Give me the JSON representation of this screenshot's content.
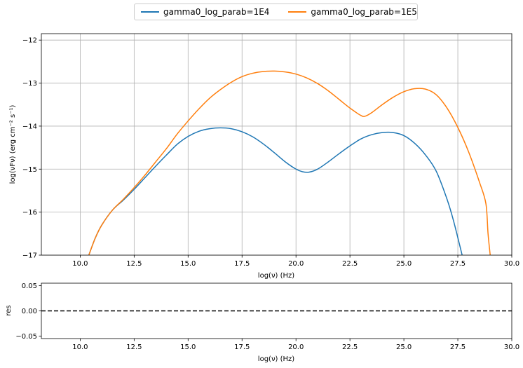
{
  "colors": {
    "series1": "#1f77b4",
    "series2": "#ff7f0e",
    "grid": "#b0b0b0"
  },
  "chart_data": [
    {
      "type": "line",
      "xlabel": "log(ν)  (Hz)",
      "ylabel": "log(νFν)  (erg cm⁻²  s⁻¹)",
      "xlim": [
        8.2,
        30.0
      ],
      "ylim": [
        -17.0,
        -11.85
      ],
      "xticks": [
        10.0,
        12.5,
        15.0,
        17.5,
        20.0,
        22.5,
        25.0,
        27.5,
        30.0
      ],
      "xtick_labels": [
        "10.0",
        "12.5",
        "15.0",
        "17.5",
        "20.0",
        "22.5",
        "25.0",
        "27.5",
        "30.0"
      ],
      "yticks": [
        -17,
        -16,
        -15,
        -14,
        -13,
        -12
      ],
      "ytick_labels": [
        "−17",
        "−16",
        "−15",
        "−14",
        "−13",
        "−12"
      ],
      "grid": true,
      "legend_position": "top-center",
      "series": [
        {
          "name": "gamma0_log_parab=1E4",
          "color": "#1f77b4",
          "x": [
            10.4,
            10.7,
            11.0,
            11.5,
            12.0,
            12.5,
            13.0,
            13.5,
            14.0,
            14.5,
            15.0,
            15.5,
            16.0,
            16.5,
            17.0,
            17.5,
            18.0,
            18.5,
            19.0,
            19.5,
            20.0,
            20.3,
            20.6,
            21.0,
            21.5,
            22.0,
            22.5,
            23.0,
            23.5,
            24.0,
            24.5,
            25.0,
            25.5,
            26.0,
            26.5,
            27.0,
            27.3,
            27.7
          ],
          "y": [
            -17.0,
            -16.6,
            -16.3,
            -15.95,
            -15.72,
            -15.47,
            -15.2,
            -14.93,
            -14.67,
            -14.42,
            -14.24,
            -14.12,
            -14.06,
            -14.04,
            -14.06,
            -14.13,
            -14.25,
            -14.42,
            -14.62,
            -14.83,
            -15.0,
            -15.06,
            -15.07,
            -15.0,
            -14.83,
            -14.64,
            -14.46,
            -14.3,
            -14.2,
            -14.15,
            -14.15,
            -14.22,
            -14.4,
            -14.67,
            -15.05,
            -15.7,
            -16.2,
            -17.0
          ]
        },
        {
          "name": "gamma0_log_parab=1E5",
          "color": "#ff7f0e",
          "x": [
            10.4,
            10.7,
            11.0,
            11.5,
            12.0,
            12.5,
            13.0,
            13.5,
            14.0,
            14.5,
            15.0,
            15.5,
            16.0,
            16.5,
            17.0,
            17.5,
            18.0,
            18.5,
            19.0,
            19.5,
            20.0,
            20.5,
            21.0,
            21.5,
            22.0,
            22.5,
            23.0,
            23.2,
            23.5,
            24.0,
            24.5,
            25.0,
            25.5,
            26.0,
            26.5,
            27.0,
            27.5,
            28.0,
            28.5,
            28.8,
            28.9,
            29.0
          ],
          "y": [
            -17.0,
            -16.6,
            -16.3,
            -15.95,
            -15.7,
            -15.43,
            -15.14,
            -14.83,
            -14.52,
            -14.18,
            -13.88,
            -13.6,
            -13.35,
            -13.15,
            -12.98,
            -12.85,
            -12.77,
            -12.73,
            -12.72,
            -12.74,
            -12.79,
            -12.88,
            -13.01,
            -13.18,
            -13.38,
            -13.58,
            -13.75,
            -13.77,
            -13.69,
            -13.5,
            -13.33,
            -13.2,
            -13.13,
            -13.14,
            -13.27,
            -13.58,
            -14.03,
            -14.6,
            -15.3,
            -15.8,
            -16.5,
            -17.0
          ]
        }
      ]
    },
    {
      "type": "line",
      "xlabel": "log(ν)  (Hz)",
      "ylabel": "res",
      "xlim": [
        8.2,
        30.0
      ],
      "ylim": [
        -0.055,
        0.055
      ],
      "xticks": [
        10.0,
        12.5,
        15.0,
        17.5,
        20.0,
        22.5,
        25.0,
        27.5,
        30.0
      ],
      "xtick_labels": [
        "10.0",
        "12.5",
        "15.0",
        "17.5",
        "20.0",
        "22.5",
        "25.0",
        "27.5",
        "30.0"
      ],
      "yticks": [
        -0.05,
        0.0,
        0.05
      ],
      "ytick_labels": [
        "−0.05",
        "0.00",
        "0.05"
      ],
      "grid": false,
      "reference_line": {
        "y": 0.0,
        "style": "dashed",
        "color": "#000000"
      }
    }
  ]
}
